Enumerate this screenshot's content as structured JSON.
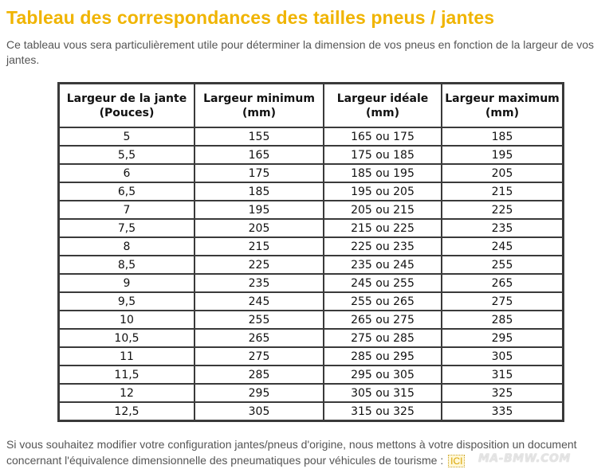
{
  "page": {
    "title": "Tableau des correspondances des tailles pneus / jantes",
    "intro": "Ce tableau vous sera particulièrement utile pour déterminer la dimension de vos pneus en fonction de la largeur de vos jantes.",
    "footer_text": "Si vous souhaitez modifier votre configuration jantes/pneus d'origine, nous mettons à votre disposition un document concernant l'équivalence dimensionnelle des pneumatiques pour véhicules de tourisme :",
    "footer_link": "ICI",
    "watermark": "MA-BMW.COM"
  },
  "colors": {
    "title": "#f0b400",
    "text": "#555555",
    "table_border": "#3a3a3a"
  },
  "table": {
    "headers": [
      "Largeur de la jante\n(Pouces)",
      "Largeur minimum\n(mm)",
      "Largeur idéale\n(mm)",
      "Largeur maximum\n(mm)"
    ],
    "rows": [
      [
        "5",
        "155",
        "165 ou 175",
        "185"
      ],
      [
        "5,5",
        "165",
        "175 ou 185",
        "195"
      ],
      [
        "6",
        "175",
        "185 ou 195",
        "205"
      ],
      [
        "6,5",
        "185",
        "195 ou 205",
        "215"
      ],
      [
        "7",
        "195",
        "205 ou 215",
        "225"
      ],
      [
        "7,5",
        "205",
        "215 ou 225",
        "235"
      ],
      [
        "8",
        "215",
        "225 ou 235",
        "245"
      ],
      [
        "8,5",
        "225",
        "235 ou 245",
        "255"
      ],
      [
        "9",
        "235",
        "245 ou 255",
        "265"
      ],
      [
        "9,5",
        "245",
        "255 ou 265",
        "275"
      ],
      [
        "10",
        "255",
        "265 ou 275",
        "285"
      ],
      [
        "10,5",
        "265",
        "275 ou 285",
        "295"
      ],
      [
        "11",
        "275",
        "285 ou 295",
        "305"
      ],
      [
        "11,5",
        "285",
        "295 ou 305",
        "315"
      ],
      [
        "12",
        "295",
        "305 ou 315",
        "325"
      ],
      [
        "12,5",
        "305",
        "315 ou 325",
        "335"
      ]
    ]
  }
}
